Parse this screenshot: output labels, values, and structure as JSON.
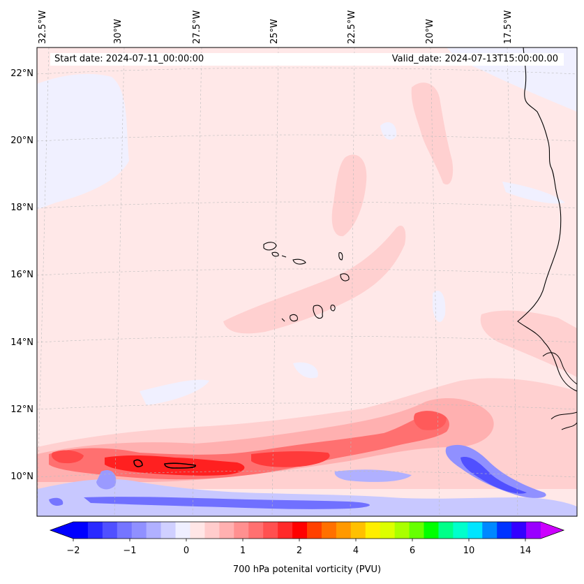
{
  "map": {
    "start_label": "Start date: 2024-07-11_00:00:00",
    "valid_label": "Valid_date: 2024-07-13T15:00:00.00",
    "lon_labels": [
      "32.5°W",
      "30°W",
      "27.5°W",
      "25°W",
      "22.5°W",
      "20°W",
      "17.5°W"
    ],
    "lat_labels": [
      "22°N",
      "20°N",
      "18°N",
      "16°N",
      "14°N",
      "12°N",
      "10°N"
    ],
    "field": "700 hPa potential vorticity",
    "region": "Eastern tropical Atlantic, Cape Verde Islands and West African coast"
  },
  "colorbar": {
    "title": "700 hPa potenital vorticity (PVU)",
    "tick_labels": [
      "−2",
      "−1",
      "0",
      "1",
      "2",
      "4",
      "6",
      "10",
      "14"
    ],
    "colors": [
      "#0000ff",
      "#2a2aff",
      "#5050ff",
      "#7575ff",
      "#9090ff",
      "#b0b0ff",
      "#d0d0ff",
      "#efefff",
      "#ffe6e6",
      "#ffcccc",
      "#ffb0b0",
      "#ff9090",
      "#ff7070",
      "#ff5050",
      "#ff2a2a",
      "#ff0000",
      "#ff4000",
      "#ff7000",
      "#ff9900",
      "#ffc000",
      "#ffee00",
      "#ddff00",
      "#aaff00",
      "#66ff00",
      "#00ff00",
      "#00ff88",
      "#00ffcc",
      "#00e5ff",
      "#0088ff",
      "#0033ff",
      "#3300ff",
      "#9900ff"
    ],
    "under_color": "#0000ff",
    "over_color": "#cc00ff"
  }
}
